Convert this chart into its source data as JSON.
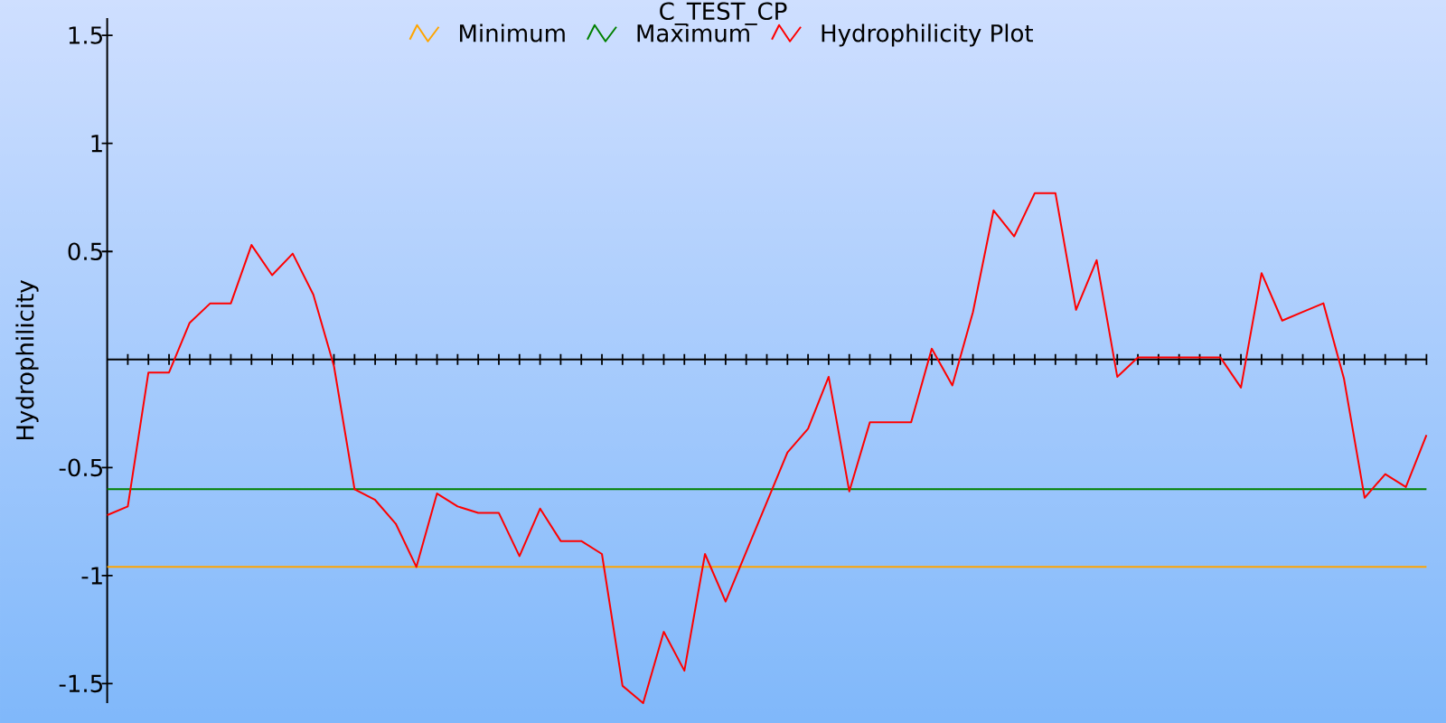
{
  "chart_data": {
    "type": "line",
    "title": "C_TEST_CP",
    "ylabel": "Hydrophilicity",
    "categories": [
      null,
      null,
      null,
      null,
      null,
      null,
      null,
      null,
      null,
      null,
      null,
      null,
      null,
      null,
      null,
      null,
      null,
      null,
      null,
      null,
      null,
      null,
      null,
      null,
      null,
      null,
      null,
      null,
      null,
      null,
      null,
      null,
      null,
      null,
      null,
      null,
      null,
      null,
      null,
      null,
      null,
      null,
      null,
      null,
      null,
      null,
      null,
      null,
      null,
      null,
      null,
      null,
      null,
      null,
      null,
      null,
      null,
      null,
      null,
      null,
      null,
      null,
      null,
      null,
      null
    ],
    "series": [
      {
        "name": "Hydrophilicity Plot",
        "color": "#ff0000",
        "values": [
          -0.72,
          -0.68,
          -0.06,
          -0.06,
          0.17,
          0.26,
          0.26,
          0.53,
          0.39,
          0.49,
          0.3,
          -0.03,
          -0.6,
          -0.65,
          -0.76,
          -0.96,
          -0.62,
          -0.68,
          -0.71,
          -0.71,
          -0.91,
          -0.69,
          -0.84,
          -0.84,
          -0.9,
          -1.51,
          -1.59,
          -1.26,
          -1.44,
          -0.9,
          -1.12,
          -0.89,
          -0.66,
          -0.43,
          -0.32,
          -0.08,
          -0.61,
          -0.29,
          -0.29,
          -0.29,
          0.05,
          -0.12,
          0.22,
          0.69,
          0.57,
          0.77,
          0.77,
          0.23,
          0.46,
          -0.08,
          0.01,
          0.01,
          0.01,
          0.01,
          0.01,
          -0.13,
          0.4,
          0.18,
          0.22,
          0.26,
          -0.09,
          -0.64,
          -0.53,
          -0.59,
          -0.35
        ]
      }
    ],
    "ref_lines": [
      {
        "axis": "y",
        "value": -0.96,
        "label": "Minimum",
        "color": "#ffa500"
      },
      {
        "axis": "y",
        "value": -0.6,
        "label": "Maximum",
        "color": "#008000"
      }
    ],
    "ylim": [
      -1.59,
      1.58
    ],
    "yticks": [
      -1.5,
      -1,
      -0.5,
      0.5,
      1,
      1.5
    ],
    "legend": "top",
    "marker": "none",
    "line_style": "solid"
  }
}
